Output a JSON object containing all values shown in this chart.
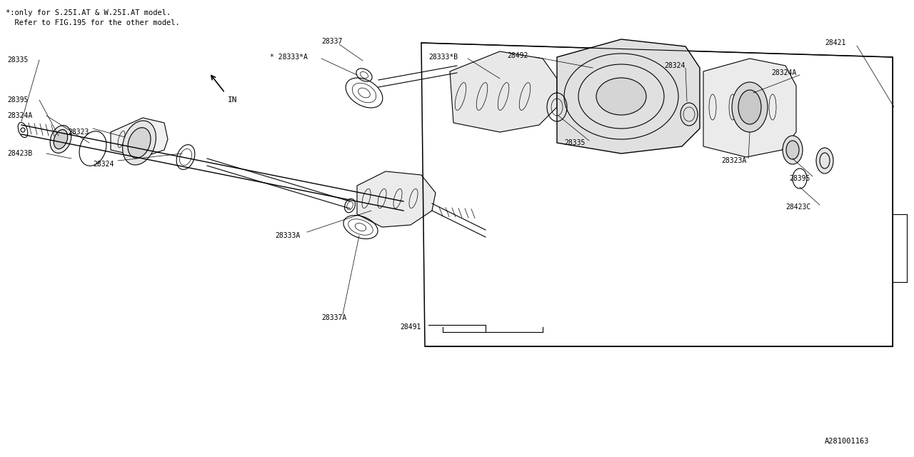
{
  "bg_color": "#ffffff",
  "line_color": "#000000",
  "text_color": "#000000",
  "fig_width": 12.8,
  "fig_height": 6.4,
  "note_line1": "*:only for S.25I.AT & W.25I.AT model.",
  "note_line2": "  Refer to FIG.195 for the other model.",
  "diagram_id": "A281001163"
}
